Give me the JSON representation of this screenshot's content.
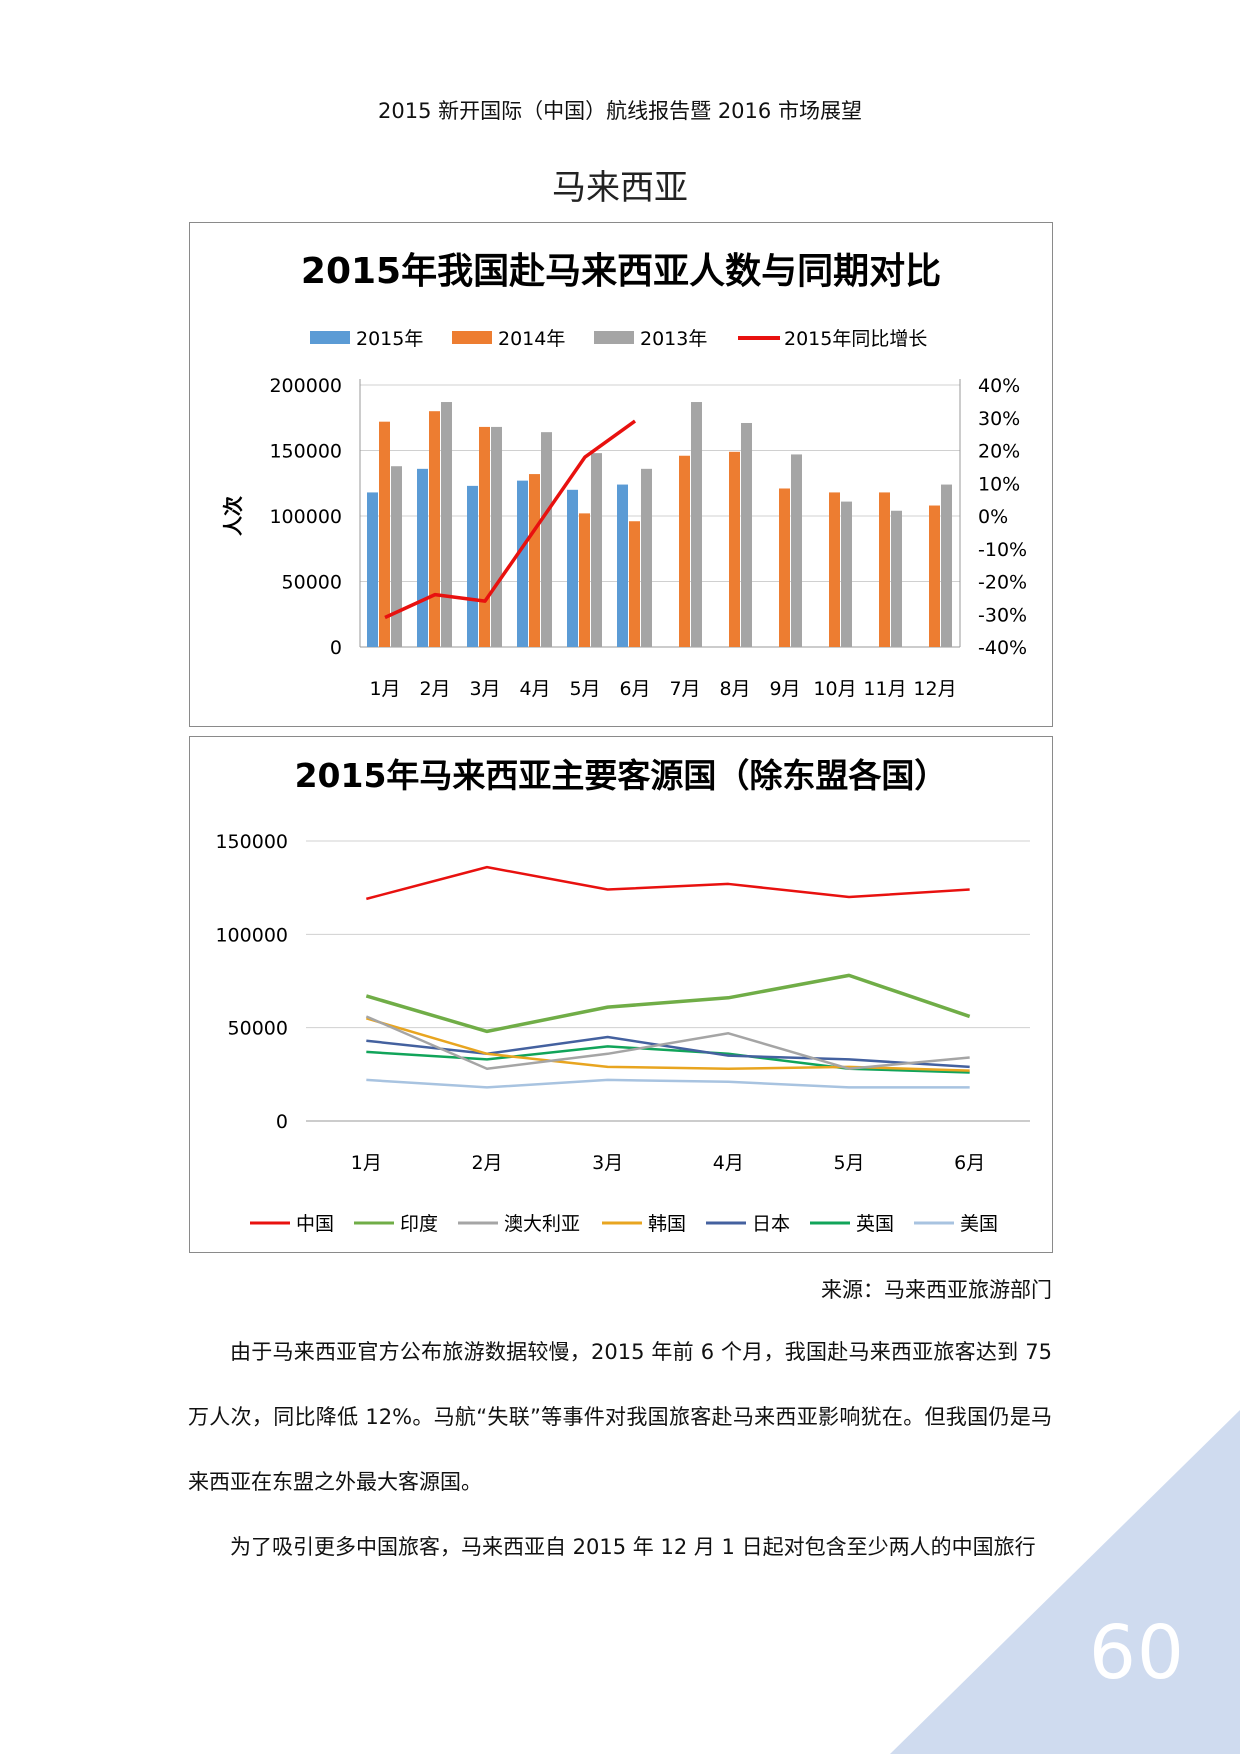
{
  "header": {
    "title": "2015 新开国际（中国）航线报告暨 2016 市场展望"
  },
  "section": {
    "title": "马来西亚"
  },
  "colors": {
    "corner": "#cfdbef",
    "page_number": "#ffffff"
  },
  "chart_data": [
    {
      "type": "bar",
      "title": "2015年我国赴马来西亚人数与同期对比",
      "ylabel": "人次",
      "categories": [
        "1月",
        "2月",
        "3月",
        "4月",
        "5月",
        "6月",
        "7月",
        "8月",
        "9月",
        "10月",
        "11月",
        "12月"
      ],
      "ylim": [
        0,
        200000
      ],
      "yticks": [
        "0",
        "50000",
        "100000",
        "150000",
        "200000"
      ],
      "y2lim": [
        -40,
        40
      ],
      "y2ticks": [
        "-40%",
        "-30%",
        "-20%",
        "-10%",
        "0%",
        "10%",
        "20%",
        "30%",
        "40%"
      ],
      "grid": true,
      "legend_position": "top",
      "series": [
        {
          "name": "2015年",
          "color": "#5b9bd5",
          "values": [
            118000,
            136000,
            123000,
            127000,
            120000,
            124000,
            null,
            null,
            null,
            null,
            null,
            null
          ]
        },
        {
          "name": "2014年",
          "color": "#ed7d31",
          "values": [
            172000,
            180000,
            168000,
            132000,
            102000,
            96000,
            146000,
            149000,
            121000,
            118000,
            118000,
            108000
          ]
        },
        {
          "name": "2013年",
          "color": "#a5a5a5",
          "values": [
            138000,
            187000,
            168000,
            164000,
            148000,
            136000,
            187000,
            171000,
            147000,
            111000,
            104000,
            124000
          ]
        },
        {
          "name": "2015年同比增长",
          "color": "#e8110f",
          "type": "line",
          "axis": "right",
          "values": [
            -31,
            -24,
            -26,
            -4,
            18,
            29,
            null,
            null,
            null,
            null,
            null,
            null
          ]
        }
      ]
    },
    {
      "type": "line",
      "title": "2015年马来西亚主要客源国（除东盟各国）",
      "categories": [
        "1月",
        "2月",
        "3月",
        "4月",
        "5月",
        "6月"
      ],
      "ylim": [
        0,
        150000
      ],
      "yticks": [
        "0",
        "50000",
        "100000",
        "150000"
      ],
      "grid": true,
      "legend_position": "bottom",
      "series": [
        {
          "name": "中国",
          "color": "#e8110f",
          "values": [
            119000,
            136000,
            124000,
            127000,
            120000,
            124000
          ]
        },
        {
          "name": "印度",
          "color": "#70ad47",
          "values": [
            67000,
            48000,
            61000,
            66000,
            78000,
            56000
          ]
        },
        {
          "name": "澳大利亚",
          "color": "#a5a5a5",
          "values": [
            56000,
            28000,
            36000,
            47000,
            28000,
            34000
          ]
        },
        {
          "name": "韩国",
          "color": "#e8a520",
          "values": [
            55000,
            36000,
            29000,
            28000,
            29000,
            27000
          ]
        },
        {
          "name": "日本",
          "color": "#44619f",
          "values": [
            43000,
            36000,
            45000,
            35000,
            33000,
            29000
          ]
        },
        {
          "name": "英国",
          "color": "#11a45a",
          "values": [
            37000,
            33000,
            40000,
            36000,
            28000,
            26000
          ]
        },
        {
          "name": "美国",
          "color": "#a8c3e0",
          "values": [
            22000,
            18000,
            22000,
            21000,
            18000,
            18000
          ]
        }
      ]
    }
  ],
  "source": {
    "text": "来源：马来西亚旅游部门"
  },
  "body": {
    "paragraphs": [
      "由于马来西亚官方公布旅游数据较慢，2015 年前 6 个月，我国赴马来西亚旅客达到 75 万人次，同比降低 12%。马航“失联”等事件对我国旅客赴马来西亚影响犹在。但我国仍是马来西亚在东盟之外最大客源国。",
      "为了吸引更多中国旅客，马来西亚自 2015 年 12 月 1 日起对包含至少两人的中国旅行"
    ]
  },
  "page": {
    "number": "60"
  }
}
